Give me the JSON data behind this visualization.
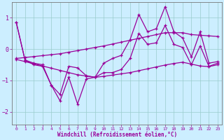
{
  "xlabel": "Windchill (Refroidissement éolien,°C)",
  "x": [
    0,
    1,
    2,
    3,
    4,
    5,
    6,
    7,
    8,
    9,
    10,
    11,
    12,
    13,
    14,
    15,
    16,
    17,
    18,
    19,
    20,
    21,
    22,
    23
  ],
  "line_volatile1": [
    0.85,
    -0.35,
    -0.45,
    -0.5,
    -1.15,
    -1.45,
    -0.55,
    -0.6,
    -0.85,
    -0.9,
    -0.45,
    -0.3,
    -0.2,
    0.3,
    1.1,
    0.55,
    0.65,
    1.35,
    0.55,
    0.35,
    -0.25,
    0.55,
    -0.45,
    -0.4
  ],
  "line_volatile2": [
    0.85,
    -0.35,
    -0.5,
    -0.55,
    -1.15,
    -1.65,
    -0.9,
    -1.75,
    -0.95,
    -0.9,
    -0.75,
    -0.75,
    -0.65,
    -0.3,
    0.5,
    0.15,
    0.2,
    0.75,
    0.15,
    0.05,
    -0.5,
    0.1,
    -0.55,
    -0.45
  ],
  "line_upper": [
    -0.3,
    -0.27,
    -0.24,
    -0.21,
    -0.18,
    -0.15,
    -0.1,
    -0.05,
    0.0,
    0.05,
    0.1,
    0.16,
    0.22,
    0.28,
    0.34,
    0.4,
    0.46,
    0.52,
    0.52,
    0.52,
    0.46,
    0.44,
    0.42,
    0.4
  ],
  "line_lower": [
    -0.33,
    -0.4,
    -0.47,
    -0.54,
    -0.61,
    -0.68,
    -0.75,
    -0.82,
    -0.86,
    -0.9,
    -0.87,
    -0.83,
    -0.79,
    -0.75,
    -0.69,
    -0.63,
    -0.57,
    -0.51,
    -0.46,
    -0.42,
    -0.48,
    -0.54,
    -0.56,
    -0.5
  ],
  "line_color": "#990099",
  "bg_color": "#cceeff",
  "grid_color": "#99cccc",
  "ylim": [
    -2.4,
    1.5
  ],
  "yticks": [
    -2,
    -1,
    0,
    1
  ],
  "xticks": [
    0,
    1,
    2,
    3,
    4,
    5,
    6,
    7,
    8,
    9,
    10,
    11,
    12,
    13,
    14,
    15,
    16,
    17,
    18,
    19,
    20,
    21,
    22,
    23
  ]
}
